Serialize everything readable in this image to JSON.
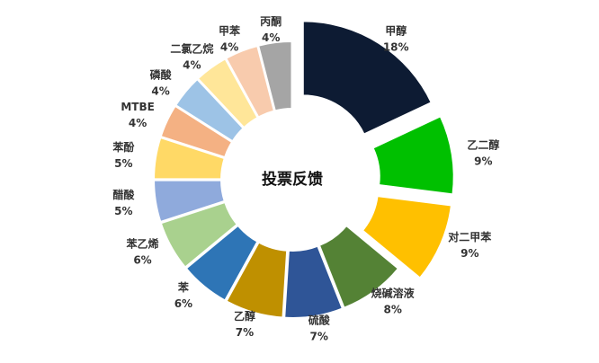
{
  "chart_data": {
    "type": "donut",
    "center_text": "投票反馈",
    "categories": [
      "甲醇",
      "乙二醇",
      "对二甲苯",
      "烧碱溶液",
      "硫酸",
      "乙醇",
      "苯",
      "苯乙烯",
      "醋酸",
      "苯酚",
      "MTBE",
      "磷酸",
      "二氯乙烷",
      "甲苯",
      "丙酮"
    ],
    "values": [
      18,
      9,
      9,
      8,
      7,
      7,
      6,
      6,
      5,
      5,
      4,
      4,
      4,
      4,
      4
    ],
    "value_labels": [
      "18%",
      "9%",
      "9%",
      "8%",
      "7%",
      "7%",
      "6%",
      "6%",
      "5%",
      "5%",
      "4%",
      "4%",
      "4%",
      "4%",
      "4%"
    ],
    "colors": [
      "#0d1b33",
      "#00c000",
      "#ffc000",
      "#548235",
      "#2f5597",
      "#bf9000",
      "#2e75b6",
      "#a9d18e",
      "#8faadc",
      "#ffd966",
      "#f4b183",
      "#9dc3e6",
      "#ffe699",
      "#f8cbad",
      "#a5a5a5"
    ]
  }
}
